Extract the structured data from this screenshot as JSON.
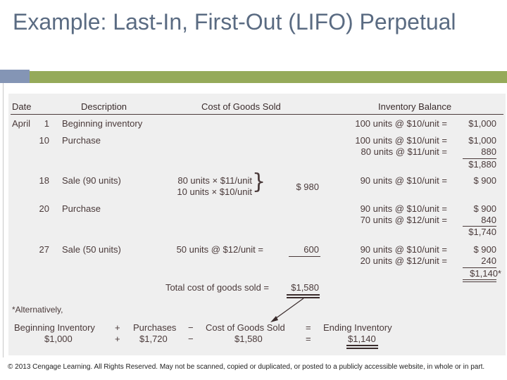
{
  "title": "Example:  Last-In, First-Out (LIFO) Perpetual",
  "table": {
    "headers": {
      "date": "Date",
      "description": "Description",
      "cogs": "Cost of Goods Sold",
      "inventory": "Inventory Balance"
    },
    "rows": [
      {
        "month": "April",
        "day": "1",
        "desc": "Beginning inventory",
        "inv": [
          "100 units @ $10/unit ="
        ],
        "bal": [
          "$1,000"
        ]
      },
      {
        "day": "10",
        "desc": "Purchase",
        "inv": [
          "100 units @ $10/unit =",
          "80 units @ $11/unit ="
        ],
        "bal": [
          "$1,000",
          "880",
          "$1,880"
        ]
      },
      {
        "day": "18",
        "desc": "Sale (90 units)",
        "cogs": [
          "80 units × $11/unit",
          "10 units × $10/unit"
        ],
        "cogs_amount": "$  980",
        "inv": [
          "90 units @ $10/unit ="
        ],
        "bal": [
          "$  900"
        ]
      },
      {
        "day": "20",
        "desc": "Purchase",
        "inv": [
          "90 units @ $10/unit =",
          "70 units @ $12/unit ="
        ],
        "bal": [
          "$  900",
          "840",
          "$1,740"
        ]
      },
      {
        "day": "27",
        "desc": "Sale (50 units)",
        "cogs": [
          "50 units @ $12/unit ="
        ],
        "cogs_amount": "600",
        "inv": [
          "90 units @ $10/unit =",
          "20 units @ $12/unit ="
        ],
        "bal": [
          "$  900",
          "240",
          "$1,140*"
        ]
      }
    ],
    "total_label": "Total cost of goods sold =",
    "total_value": "$1,580"
  },
  "alternative": {
    "note": "*Alternatively,",
    "labels": [
      "Beginning Inventory",
      "+",
      "Purchases",
      "−",
      "Cost of Goods Sold",
      "=",
      "Ending Inventory"
    ],
    "values": [
      "$1,000",
      "+",
      "$1,720",
      "−",
      "$1,580",
      "=",
      "$1,140"
    ]
  },
  "footer": "© 2013 Cengage Learning. All Rights Reserved. May not be scanned, copied or duplicated, or posted to a publicly accessible website, in whole or in part.",
  "colors": {
    "title": "#5a6b82",
    "bar_blue": "#8495b5",
    "bar_green": "#95aa5a",
    "panel": "#efefef"
  }
}
